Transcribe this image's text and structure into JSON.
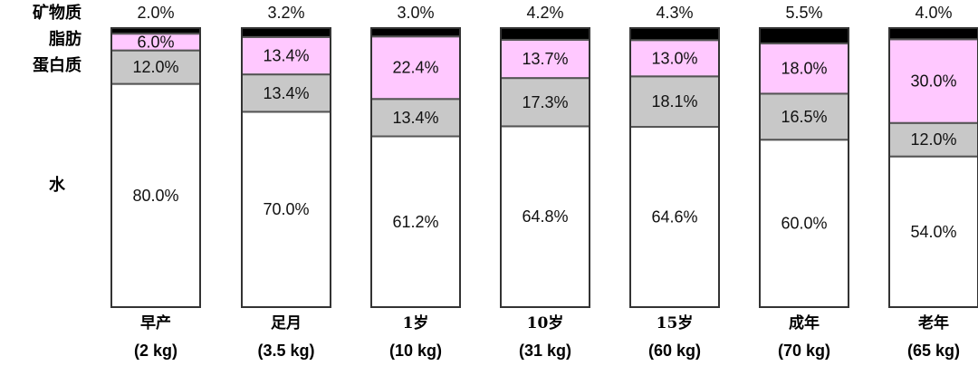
{
  "chart_data": {
    "type": "bar",
    "stacked": true,
    "legend_placement": "left",
    "row_labels": [
      "矿物质",
      "脂肪",
      "蛋白质",
      "水"
    ],
    "categories": [
      {
        "name": "早产",
        "weight": "(2 kg)"
      },
      {
        "name": "足月",
        "weight": "(3.5 kg)"
      },
      {
        "name": "1岁",
        "weight": "(10 kg)"
      },
      {
        "name": "10岁",
        "weight": "(31 kg)"
      },
      {
        "name": "15岁",
        "weight": "(60 kg)"
      },
      {
        "name": "成年",
        "weight": "(70 kg)"
      },
      {
        "name": "老年",
        "weight": "(65 kg)"
      }
    ],
    "series": [
      {
        "key": "water",
        "color": "#ffffff",
        "values": [
          80.0,
          70.0,
          61.2,
          64.8,
          64.6,
          60.0,
          54.0
        ],
        "labels": [
          "80.0%",
          "70.0%",
          "61.2%",
          "64.8%",
          "64.6%",
          "60.0%",
          "54.0%"
        ]
      },
      {
        "key": "protein",
        "color": "#c8c8c8",
        "values": [
          12.0,
          13.4,
          13.4,
          17.3,
          18.1,
          16.5,
          12.0
        ],
        "labels": [
          "12.0%",
          "13.4%",
          "13.4%",
          "17.3%",
          "18.1%",
          "16.5%",
          "12.0%"
        ]
      },
      {
        "key": "fat",
        "color": "#ffc8ff",
        "values": [
          6.0,
          13.4,
          22.4,
          13.7,
          13.0,
          18.0,
          30.0
        ],
        "labels": [
          "6.0%",
          "13.4%",
          "22.4%",
          "13.7%",
          "13.0%",
          "18.0%",
          "30.0%"
        ]
      },
      {
        "key": "mineral",
        "color": "#000000",
        "values": [
          2.0,
          3.2,
          3.0,
          4.2,
          4.3,
          5.5,
          4.0
        ],
        "labels": [
          "2.0%",
          "3.2%",
          "3.0%",
          "4.2%",
          "4.3%",
          "5.5%",
          "4.0%"
        ]
      }
    ],
    "ylim": [
      0,
      100
    ]
  }
}
